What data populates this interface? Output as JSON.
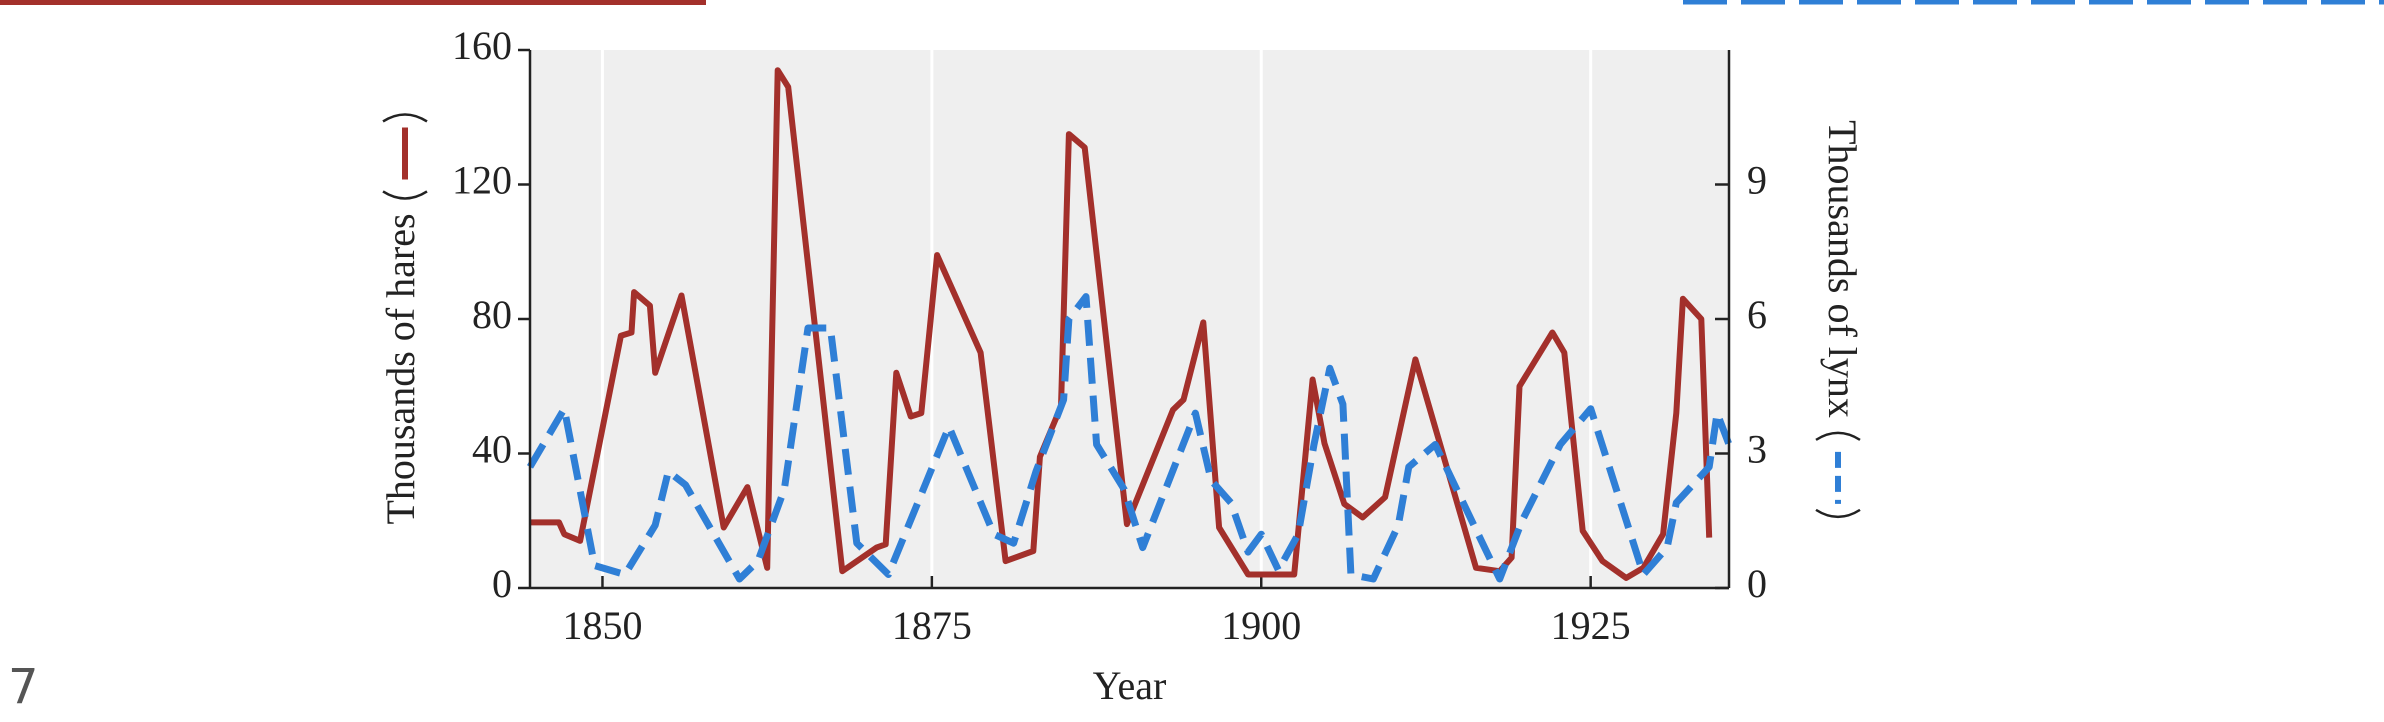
{
  "page_number": "7",
  "chart_data": {
    "type": "line",
    "xlabel": "Year",
    "ylabel": "Thousands of hares",
    "y2label": "Thousands of lynx",
    "xlim": [
      1844.5,
      1935.5
    ],
    "xticks": [
      1850,
      1875,
      1900,
      1925
    ],
    "ylim": [
      0,
      160
    ],
    "yticks": [
      0,
      40,
      80,
      120,
      160
    ],
    "y2lim": [
      0,
      12
    ],
    "y2ticks": [
      0,
      3,
      6,
      9
    ],
    "grid": true,
    "series": [
      {
        "color": "#a3302b",
        "dashed": false,
        "x": [
          1844.5,
          1846.7,
          1847.1,
          1848.3,
          1851.4,
          1852.2,
          1852.4,
          1853.6,
          1854.0,
          1856.0,
          1859.2,
          1861.0,
          1862.5,
          1863.3,
          1864.1,
          1868.2,
          1870.8,
          1871.5,
          1872.3,
          1873.4,
          1874.2,
          1875.4,
          1878.7,
          1880.6,
          1882.7,
          1883.2,
          1884.8,
          1885.4,
          1886.6,
          1889.8,
          1893.3,
          1894.1,
          1895.6,
          1896.8,
          1899.0,
          1902.5,
          1903.9,
          1904.8,
          1906.3,
          1907.7,
          1909.4,
          1911.7,
          1916.3,
          1918.1,
          1919.0,
          1919.6,
          1922.1,
          1923.0,
          1924.4,
          1925.9,
          1927.7,
          1929.0,
          1930.5,
          1931.5,
          1932.0,
          1933.4,
          1934.0
        ],
        "values": [
          19.5,
          19.5,
          16,
          14,
          75,
          76,
          88,
          84,
          64,
          87,
          18,
          30,
          6,
          154,
          149,
          5,
          12,
          13,
          64,
          51,
          52,
          99,
          70,
          8,
          11,
          39,
          54,
          135,
          131,
          19,
          53,
          56,
          79,
          18,
          4,
          4,
          62,
          43,
          25,
          21,
          27,
          68,
          6,
          5,
          9,
          60,
          76,
          70,
          17,
          8,
          3,
          6,
          16,
          52,
          86,
          80,
          15
        ]
      },
      {
        "color": "#2f7fd6",
        "dashed": true,
        "axis": "y2",
        "x": [
          1844.5,
          1847.1,
          1849.4,
          1851.7,
          1854.0,
          1855.0,
          1856.3,
          1860.4,
          1861.8,
          1863.8,
          1865.6,
          1867.3,
          1869.3,
          1871.7,
          1876.3,
          1879.7,
          1881.2,
          1882.9,
          1885.0,
          1885.4,
          1886.7,
          1887.5,
          1889.6,
          1891.0,
          1895.0,
          1896.2,
          1897.7,
          1899.0,
          1900.0,
          1901.3,
          1902.8,
          1904.0,
          1905.2,
          1906.2,
          1906.8,
          1908.5,
          1910.4,
          1911.2,
          1913.2,
          1918.1,
          1919.8,
          1922.7,
          1925.0,
          1929.0,
          1930.8,
          1931.5,
          1934.0,
          1934.6,
          1935.5
        ],
        "values": [
          2.7,
          4.0,
          0.5,
          0.3,
          1.4,
          2.6,
          2.3,
          0.2,
          0.6,
          2.2,
          5.8,
          5.8,
          1.0,
          0.3,
          3.6,
          1.2,
          1.0,
          2.6,
          4.2,
          6.0,
          6.5,
          3.2,
          2.2,
          0.9,
          3.9,
          2.4,
          1.9,
          0.8,
          1.2,
          0.4,
          1.2,
          3.2,
          4.9,
          4.1,
          0.3,
          0.2,
          1.4,
          2.7,
          3.2,
          0.2,
          1.5,
          3.2,
          4.0,
          0.3,
          0.9,
          1.9,
          2.7,
          3.9,
          3.2
        ]
      }
    ]
  }
}
